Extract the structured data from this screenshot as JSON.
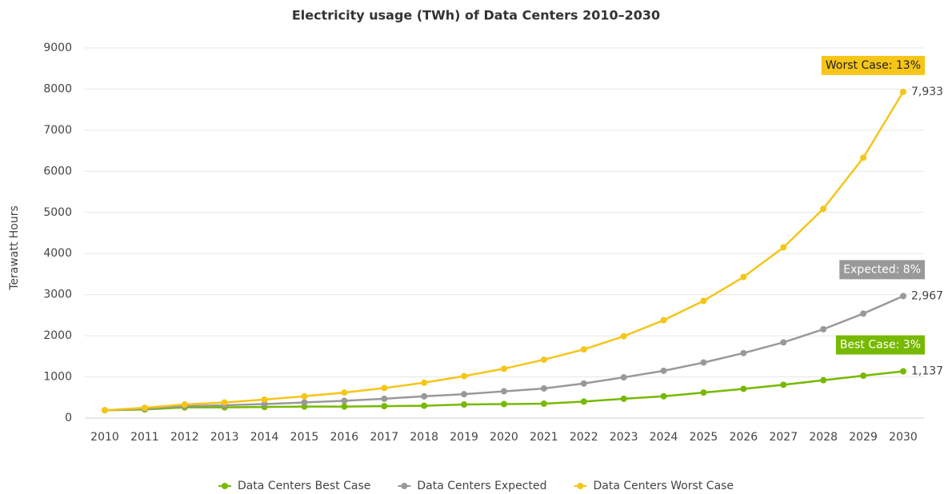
{
  "chart_data": {
    "type": "line",
    "title": "Electricity usage (TWh) of Data Centers 2010–2030",
    "y_label": "Terawatt Hours",
    "categories": [
      "2010",
      "2011",
      "2012",
      "2013",
      "2014",
      "2015",
      "2016",
      "2017",
      "2018",
      "2019",
      "2020",
      "2021",
      "2022",
      "2023",
      "2024",
      "2025",
      "2026",
      "2027",
      "2028",
      "2029",
      "2030"
    ],
    "ylim": [
      0,
      9000
    ],
    "yticks": [
      0,
      1000,
      2000,
      3000,
      4000,
      5000,
      6000,
      7000,
      8000,
      9000
    ],
    "grid": true,
    "legend": "bottom",
    "series": [
      {
        "name": "Data Centers Best Case",
        "color": "#76b900",
        "annotation": "Best Case: 3%",
        "values": [
          190,
          210,
          260,
          260,
          270,
          280,
          280,
          290,
          300,
          330,
          340,
          350,
          400,
          470,
          530,
          620,
          710,
          810,
          920,
          1030,
          1137
        ],
        "value_labels": [
          null,
          null,
          null,
          null,
          null,
          null,
          null,
          null,
          null,
          null,
          null,
          null,
          null,
          null,
          null,
          null,
          null,
          null,
          null,
          null,
          "1,137"
        ]
      },
      {
        "name": "Data Centers Expected",
        "color": "#999999",
        "annotation": "Expected: 8%",
        "values": [
          190,
          230,
          290,
          310,
          340,
          380,
          420,
          470,
          530,
          580,
          650,
          720,
          840,
          990,
          1150,
          1350,
          1580,
          1840,
          2160,
          2540,
          2967
        ],
        "value_labels": [
          null,
          null,
          null,
          null,
          null,
          null,
          null,
          null,
          null,
          null,
          null,
          null,
          null,
          null,
          null,
          null,
          null,
          null,
          null,
          null,
          "2,967"
        ]
      },
      {
        "name": "Data Centers Worst Case",
        "color": "#f5c518",
        "annotation": "Worst Case: 13%",
        "values": [
          190,
          250,
          330,
          380,
          450,
          530,
          620,
          730,
          860,
          1020,
          1200,
          1420,
          1670,
          1990,
          2380,
          2850,
          3430,
          4150,
          5090,
          6330,
          7933
        ],
        "value_labels": [
          null,
          null,
          null,
          null,
          null,
          null,
          null,
          null,
          null,
          null,
          null,
          null,
          null,
          null,
          null,
          null,
          null,
          null,
          null,
          null,
          "7,933"
        ]
      }
    ]
  }
}
